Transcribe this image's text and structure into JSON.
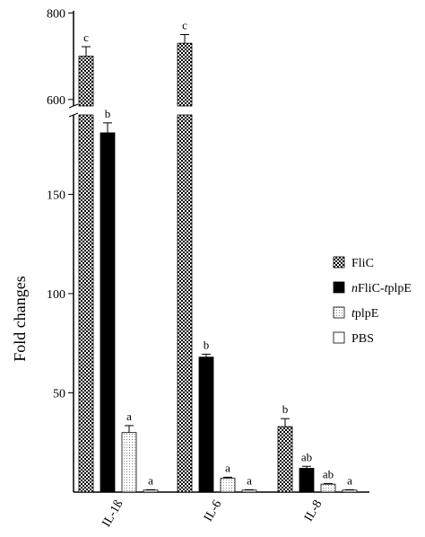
{
  "chart_data": {
    "type": "bar",
    "ylabel": "Fold changes",
    "xlabel": "",
    "categories": [
      "IL-1ß",
      "IL-6",
      "IL-8"
    ],
    "y_axis_break": true,
    "ylim_lower": [
      0,
      190
    ],
    "ylim_upper": [
      585,
      805
    ],
    "yticks_lower": [
      50,
      100,
      150
    ],
    "yticks_upper": [
      600,
      800
    ],
    "legend_position": "right",
    "series": [
      {
        "name": "FliC",
        "fill": "checkered",
        "values": [
          700,
          730,
          33
        ],
        "errors": [
          22,
          20,
          4
        ],
        "labels": [
          "c",
          "c",
          "b"
        ]
      },
      {
        "name": "nFliC-tplpE",
        "fill": "#000000",
        "values": [
          181,
          68,
          12
        ],
        "errors": [
          5,
          1.5,
          1
        ],
        "labels": [
          "b",
          "b",
          "ab"
        ]
      },
      {
        "name": "tplpE",
        "fill": "dotted",
        "values": [
          30,
          7,
          4
        ],
        "errors": [
          3.5,
          0.5,
          0.3
        ],
        "labels": [
          "a",
          "a",
          "ab"
        ]
      },
      {
        "name": "PBS",
        "fill": "#ffffff",
        "values": [
          1,
          1,
          1
        ],
        "errors": [
          0.2,
          0.2,
          0.2
        ],
        "labels": [
          "a",
          "a",
          "a"
        ]
      }
    ]
  }
}
